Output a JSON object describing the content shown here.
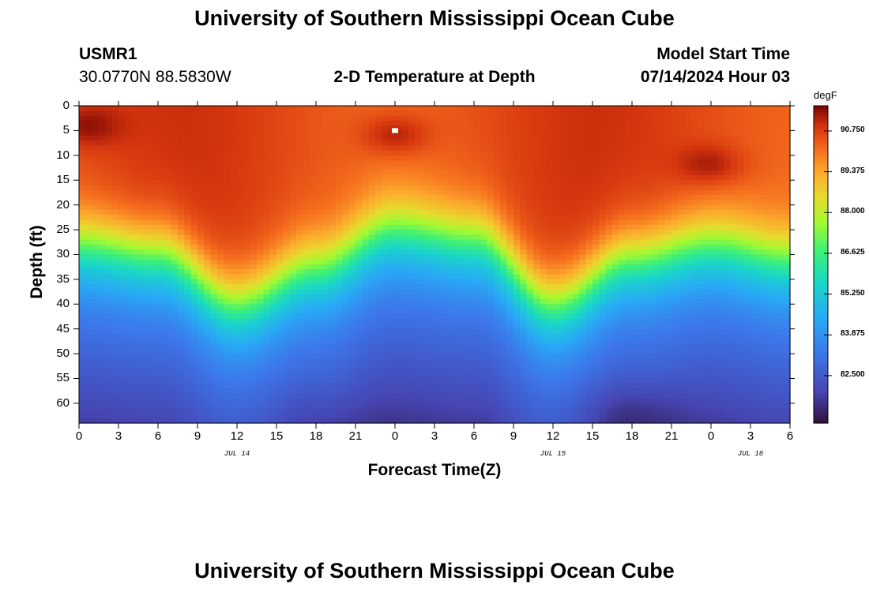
{
  "page": {
    "title_top": "University of Southern Mississippi Ocean Cube",
    "title_bottom": "University of Southern Mississippi Ocean Cube"
  },
  "header": {
    "station": "USMR1",
    "coords": "30.0770N  88.5830W",
    "plot_title": "2-D Temperature at Depth",
    "model_label": "Model Start Time",
    "model_time": "07/14/2024 Hour 03"
  },
  "chart_data": {
    "type": "heatmap",
    "title": "2-D Temperature at Depth",
    "xlabel": "Forecast Time(Z)",
    "ylabel": "Depth (ft)",
    "x_range_hours": [
      0,
      54
    ],
    "y_range_ft": [
      0,
      64
    ],
    "x_ticks": [
      "0",
      "3",
      "6",
      "9",
      "12",
      "15",
      "18",
      "21",
      "0",
      "3",
      "6",
      "9",
      "12",
      "15",
      "18",
      "21",
      "0",
      "3",
      "6"
    ],
    "y_ticks": [
      "0",
      "5",
      "10",
      "15",
      "20",
      "25",
      "30",
      "35",
      "40",
      "45",
      "50",
      "55",
      "60"
    ],
    "date_labels": [
      {
        "label": "JUL 14",
        "hour": 12
      },
      {
        "label": "JUL 15",
        "hour": 36
      },
      {
        "label": "JUL 16",
        "hour": 51
      }
    ],
    "colorbar": {
      "unit": "degF",
      "min": 80.9,
      "max": 91.6,
      "labels": [
        "90.750",
        "89.375",
        "88.000",
        "86.625",
        "85.250",
        "83.875",
        "82.500"
      ],
      "label_values": [
        90.75,
        89.375,
        88.0,
        86.625,
        85.25,
        83.875,
        82.5
      ]
    },
    "thermocline_depth_ft": [
      {
        "hour": 0,
        "depth": 28
      },
      {
        "hour": 6,
        "depth": 30
      },
      {
        "hour": 12,
        "depth": 40
      },
      {
        "hour": 18,
        "depth": 33
      },
      {
        "hour": 24,
        "depth": 25
      },
      {
        "hour": 30,
        "depth": 27
      },
      {
        "hour": 36,
        "depth": 40
      },
      {
        "hour": 42,
        "depth": 31
      },
      {
        "hour": 48,
        "depth": 28
      },
      {
        "hour": 54,
        "depth": 31
      }
    ],
    "warm_spots": [
      {
        "hour": 0.5,
        "depth": 4,
        "temp": 91.4
      },
      {
        "hour": 24,
        "depth": 6,
        "temp": 91.5
      },
      {
        "hour": 48,
        "depth": 12,
        "temp": 91.4
      }
    ],
    "cold_spots": [
      {
        "hour": 42,
        "depth": 63,
        "temp": 81.0
      },
      {
        "hour": 18,
        "depth": 64,
        "temp": 81.6
      }
    ]
  }
}
